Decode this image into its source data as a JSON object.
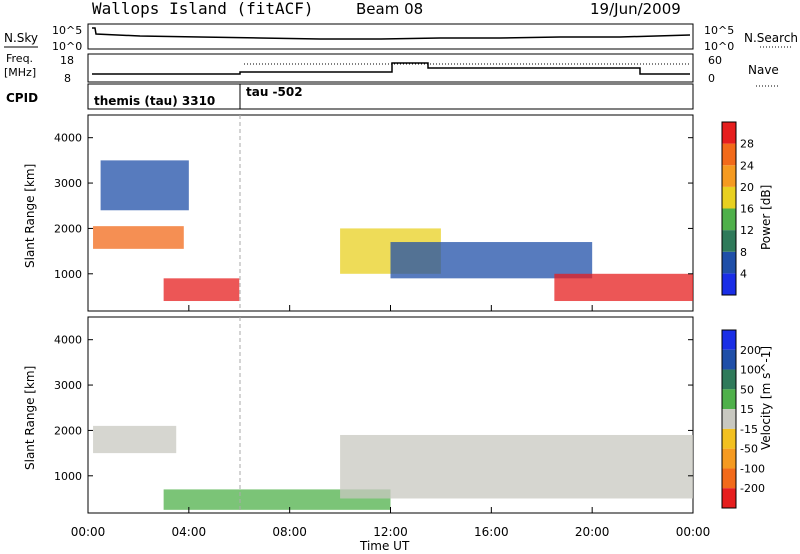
{
  "header": {
    "site": "Wallops Island (fitACF)",
    "beam": "Beam 08",
    "date": "19/Jun/2009"
  },
  "sky_panel": {
    "left_label": "N.Sky",
    "right_label": "N.Search",
    "left_ticks": [
      "10^5",
      "10^0"
    ],
    "right_ticks": [
      "10^5",
      "10^0"
    ]
  },
  "freq_panel": {
    "left_label_1": "Freq.",
    "left_label_2": "[MHz]",
    "right_label": "Nave",
    "left_ticks": [
      "18",
      "8"
    ],
    "right_ticks": [
      "60",
      "0"
    ]
  },
  "cpid_panel": {
    "label": "CPID",
    "segments": [
      {
        "label": "themis (tau) 3310",
        "start_hour": 0
      },
      {
        "label": "tau -502",
        "start_hour": 6
      }
    ]
  },
  "power_panel": {
    "ylabel": "Slant Range [km]",
    "yticks": [
      "1000",
      "2000",
      "3000",
      "4000"
    ],
    "colorbar_label": "Power [dB]",
    "colorbar_ticks": [
      "4",
      "8",
      "12",
      "16",
      "20",
      "24",
      "28"
    ],
    "colors": [
      "#1a2ee6",
      "#1f4fa8",
      "#2f7a5a",
      "#4fb04a",
      "#e8d020",
      "#f59a20",
      "#f26a1a",
      "#e61e1e"
    ]
  },
  "velocity_panel": {
    "ylabel": "Slant Range [km]",
    "yticks": [
      "1000",
      "2000",
      "3000",
      "4000"
    ],
    "colorbar_label": "Velocity [m s^-1]",
    "colorbar_ticks": [
      "200",
      "100",
      "50",
      "15",
      "-15",
      "-50",
      "-100",
      "-200"
    ],
    "colors": [
      "#1a2ee6",
      "#1f4fa8",
      "#2f7a5a",
      "#4fb04a",
      "#c8c8c0",
      "#f2c020",
      "#f59a20",
      "#f26a1a",
      "#e61e1e"
    ]
  },
  "xaxis": {
    "label": "Time UT",
    "ticks": [
      "00:00",
      "04:00",
      "08:00",
      "12:00",
      "16:00",
      "20:00",
      "00:00"
    ]
  },
  "chart_data": {
    "type": "heatmap",
    "x_range_hours": [
      0,
      24
    ],
    "y_range_km": [
      180,
      4500
    ],
    "regions": [
      {
        "panel": "power",
        "t0": 0.2,
        "t1": 3.8,
        "r0": 1550,
        "r1": 2050,
        "level": 6
      },
      {
        "panel": "power",
        "t0": 3.0,
        "t1": 6.0,
        "r0": 400,
        "r1": 900,
        "level": 7
      },
      {
        "panel": "power",
        "t0": 0.5,
        "t1": 4.0,
        "r0": 2400,
        "r1": 3500,
        "level": 1
      },
      {
        "panel": "power",
        "t0": 10.0,
        "t1": 14.0,
        "r0": 1000,
        "r1": 2000,
        "level": 4
      },
      {
        "panel": "power",
        "t0": 12.0,
        "t1": 20.0,
        "r0": 900,
        "r1": 1700,
        "level": 1
      },
      {
        "panel": "power",
        "t0": 18.5,
        "t1": 24.0,
        "r0": 400,
        "r1": 1000,
        "level": 7
      },
      {
        "panel": "velocity",
        "t0": 0.2,
        "t1": 3.5,
        "r0": 1500,
        "r1": 2100,
        "level": 4
      },
      {
        "panel": "velocity",
        "t0": 3.0,
        "t1": 12.0,
        "r0": 250,
        "r1": 700,
        "level": 3
      },
      {
        "panel": "velocity",
        "t0": 10.0,
        "t1": 24.0,
        "r0": 500,
        "r1": 1900,
        "level": 4
      }
    ]
  }
}
